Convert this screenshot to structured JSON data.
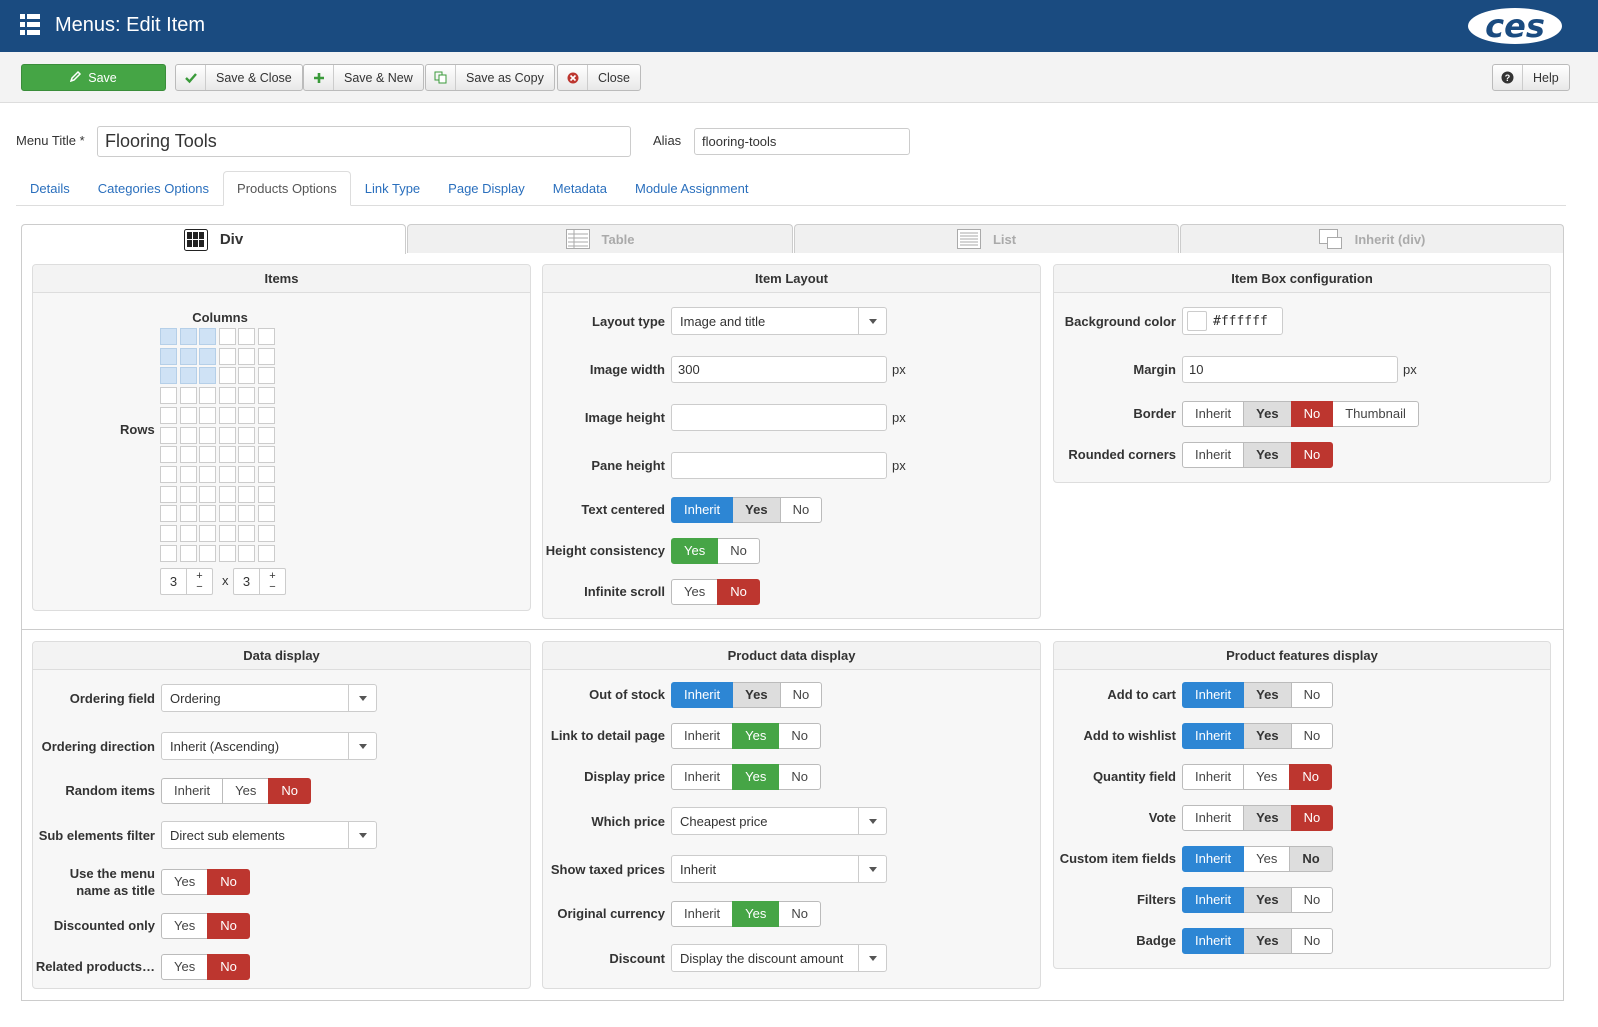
{
  "header": {
    "title": "Menus: Edit Item",
    "logo": "ces"
  },
  "toolbar": {
    "buttons": [
      "Save",
      "Save & Close",
      "Save & New",
      "Save as Copy",
      "Close"
    ],
    "help": "Help"
  },
  "form": {
    "title_label": "Menu Title *",
    "title_value": "Flooring Tools",
    "alias_label": "Alias",
    "alias_value": "flooring-tools"
  },
  "tabs": {
    "items": [
      "Details",
      "Categories Options",
      "Products Options",
      "Link Type",
      "Page Display",
      "Metadata",
      "Module Assignment"
    ],
    "active": 2
  },
  "layout_tabs": {
    "items": [
      "Div",
      "Table",
      "List",
      "Inherit (div)"
    ],
    "active": 0
  },
  "items_panel": {
    "title": "Items",
    "columns_label": "Columns",
    "rows_label": "Rows",
    "columns": 3,
    "rows": 3,
    "separator": "x"
  },
  "panels": [
    {
      "title": "Item Layout",
      "fields": [
        {
          "label": "Layout type",
          "kind": "select",
          "value": "Image and title"
        },
        {
          "label": "Image width",
          "kind": "text",
          "value": "300",
          "unit": "px"
        },
        {
          "label": "Image height",
          "kind": "text",
          "unit": "px"
        },
        {
          "label": "Pane height",
          "kind": "text",
          "unit": "px"
        },
        {
          "label": "Text centered",
          "kind": "toggle",
          "options": [
            "Inherit",
            "Yes",
            "No"
          ],
          "selected": 0,
          "color": "#2d86d4",
          "inherited": 1
        },
        {
          "label": "Height consistency",
          "kind": "toggle",
          "options": [
            "Yes",
            "No"
          ],
          "selected": 0,
          "color": "#46a546"
        },
        {
          "label": "Infinite scroll",
          "kind": "toggle",
          "options": [
            "Yes",
            "No"
          ],
          "selected": 1,
          "color": "#bd362f"
        }
      ]
    },
    {
      "title": "Item Box configuration",
      "fields": [
        {
          "label": "Background color",
          "kind": "color",
          "value": "#ffffff"
        },
        {
          "label": "Margin",
          "kind": "text",
          "value": "10",
          "unit": "px"
        },
        {
          "label": "Border",
          "kind": "toggle",
          "options": [
            "Inherit",
            "Yes",
            "No",
            "Thumbnail"
          ],
          "selected": 2,
          "color": "#bd362f",
          "inherited": 1
        },
        {
          "label": "Rounded corners",
          "kind": "toggle",
          "options": [
            "Inherit",
            "Yes",
            "No"
          ],
          "selected": 2,
          "color": "#bd362f",
          "inherited": 1
        }
      ]
    },
    {
      "title": "Data display",
      "fields": [
        {
          "label": "Ordering field",
          "kind": "select",
          "value": "Ordering"
        },
        {
          "label": "Ordering direction",
          "kind": "select",
          "value": "Inherit (Ascending)"
        },
        {
          "label": "Random items",
          "kind": "toggle",
          "options": [
            "Inherit",
            "Yes",
            "No"
          ],
          "selected": 2,
          "color": "#bd362f"
        },
        {
          "label": "Sub elements filter",
          "kind": "select",
          "value": "Direct sub elements"
        },
        {
          "label": "Use the menu name as title",
          "kind": "toggle",
          "options": [
            "Yes",
            "No"
          ],
          "selected": 1,
          "color": "#bd362f"
        },
        {
          "label": "Discounted only",
          "kind": "toggle",
          "options": [
            "Yes",
            "No"
          ],
          "selected": 1,
          "color": "#bd362f"
        },
        {
          "label": "Related products…",
          "kind": "toggle",
          "options": [
            "Yes",
            "No"
          ],
          "selected": 1,
          "color": "#bd362f"
        }
      ]
    },
    {
      "title": "Product data display",
      "fields": [
        {
          "label": "Out of stock",
          "kind": "toggle",
          "options": [
            "Inherit",
            "Yes",
            "No"
          ],
          "selected": 0,
          "color": "#2d86d4",
          "inherited": 1
        },
        {
          "label": "Link to detail page",
          "kind": "toggle",
          "options": [
            "Inherit",
            "Yes",
            "No"
          ],
          "selected": 1,
          "color": "#46a546"
        },
        {
          "label": "Display price",
          "kind": "toggle",
          "options": [
            "Inherit",
            "Yes",
            "No"
          ],
          "selected": 1,
          "color": "#46a546"
        },
        {
          "label": "Which price",
          "kind": "select",
          "value": "Cheapest price"
        },
        {
          "label": "Show taxed prices",
          "kind": "select",
          "value": "Inherit"
        },
        {
          "label": "Original currency",
          "kind": "toggle",
          "options": [
            "Inherit",
            "Yes",
            "No"
          ],
          "selected": 1,
          "color": "#46a546"
        },
        {
          "label": "Discount",
          "kind": "select",
          "value": "Display the discount amount"
        }
      ]
    },
    {
      "title": "Product features display",
      "fields": [
        {
          "label": "Add to cart",
          "kind": "toggle",
          "options": [
            "Inherit",
            "Yes",
            "No"
          ],
          "selected": 0,
          "color": "#2d86d4",
          "inherited": 1
        },
        {
          "label": "Add to wishlist",
          "kind": "toggle",
          "options": [
            "Inherit",
            "Yes",
            "No"
          ],
          "selected": 0,
          "color": "#2d86d4",
          "inherited": 1
        },
        {
          "label": "Quantity field",
          "kind": "toggle",
          "options": [
            "Inherit",
            "Yes",
            "No"
          ],
          "selected": 2,
          "color": "#bd362f"
        },
        {
          "label": "Vote",
          "kind": "toggle",
          "options": [
            "Inherit",
            "Yes",
            "No"
          ],
          "selected": 2,
          "color": "#bd362f",
          "inherited": 1
        },
        {
          "label": "Custom item fields",
          "kind": "toggle",
          "options": [
            "Inherit",
            "Yes",
            "No"
          ],
          "selected": 0,
          "color": "#2d86d4",
          "inherited": 2
        },
        {
          "label": "Filters",
          "kind": "toggle",
          "options": [
            "Inherit",
            "Yes",
            "No"
          ],
          "selected": 0,
          "color": "#2d86d4",
          "inherited": 1
        },
        {
          "label": "Badge",
          "kind": "toggle",
          "options": [
            "Inherit",
            "Yes",
            "No"
          ],
          "selected": 0,
          "color": "#2d86d4",
          "inherited": 1
        }
      ]
    }
  ]
}
